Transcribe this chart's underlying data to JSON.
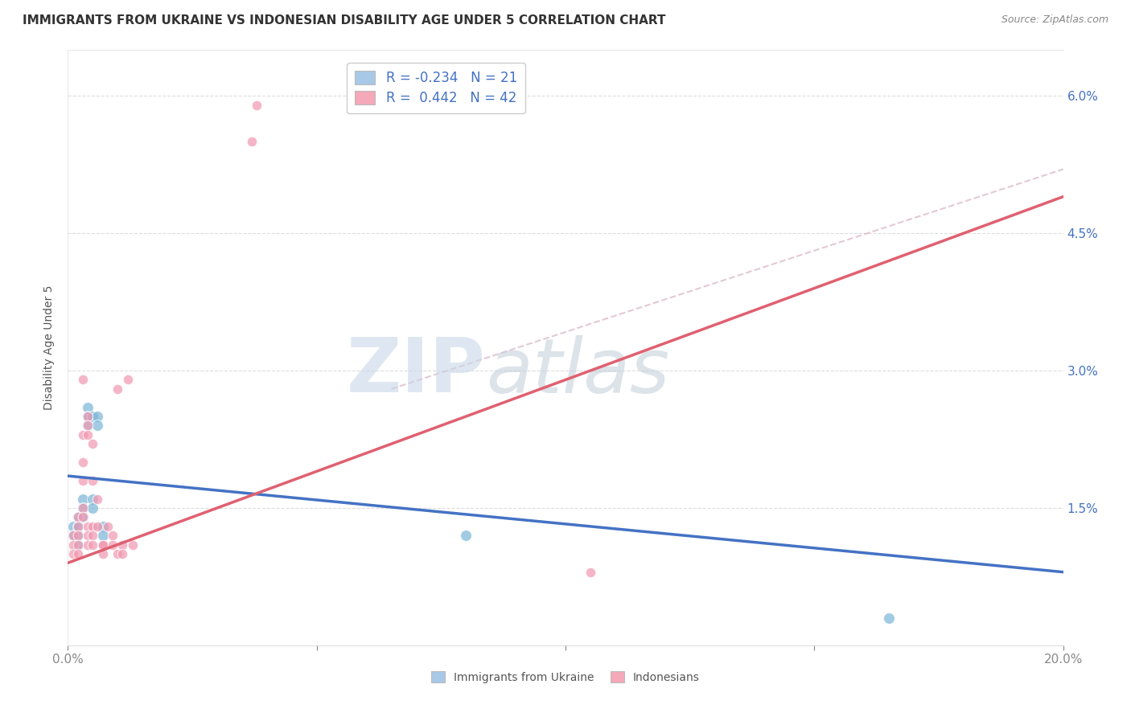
{
  "title": "IMMIGRANTS FROM UKRAINE VS INDONESIAN DISABILITY AGE UNDER 5 CORRELATION CHART",
  "source": "Source: ZipAtlas.com",
  "ylabel": "Disability Age Under 5",
  "xlim": [
    0.0,
    0.2
  ],
  "ylim": [
    0.0,
    0.065
  ],
  "xticks": [
    0.0,
    0.05,
    0.1,
    0.15,
    0.2
  ],
  "xticklabels_bottom": [
    "0.0%",
    "",
    "",
    "",
    "20.0%"
  ],
  "yticks": [
    0.0,
    0.015,
    0.03,
    0.045,
    0.06
  ],
  "yticklabels_right": [
    "",
    "1.5%",
    "3.0%",
    "4.5%",
    "6.0%"
  ],
  "legend_ukraine": {
    "R": "-0.234",
    "N": "21",
    "color": "#a8c8e8"
  },
  "legend_indonesians": {
    "R": "0.442",
    "N": "42",
    "color": "#f4a8b8"
  },
  "ukraine_scatter": [
    [
      0.001,
      0.013
    ],
    [
      0.001,
      0.012
    ],
    [
      0.002,
      0.014
    ],
    [
      0.002,
      0.013
    ],
    [
      0.002,
      0.012
    ],
    [
      0.002,
      0.011
    ],
    [
      0.003,
      0.016
    ],
    [
      0.003,
      0.015
    ],
    [
      0.003,
      0.014
    ],
    [
      0.004,
      0.026
    ],
    [
      0.004,
      0.025
    ],
    [
      0.004,
      0.024
    ],
    [
      0.005,
      0.025
    ],
    [
      0.005,
      0.016
    ],
    [
      0.005,
      0.015
    ],
    [
      0.006,
      0.025
    ],
    [
      0.006,
      0.024
    ],
    [
      0.007,
      0.013
    ],
    [
      0.007,
      0.012
    ],
    [
      0.08,
      0.012
    ],
    [
      0.165,
      0.003
    ]
  ],
  "indonesian_scatter": [
    [
      0.001,
      0.012
    ],
    [
      0.001,
      0.011
    ],
    [
      0.001,
      0.01
    ],
    [
      0.002,
      0.014
    ],
    [
      0.002,
      0.013
    ],
    [
      0.002,
      0.012
    ],
    [
      0.002,
      0.011
    ],
    [
      0.002,
      0.01
    ],
    [
      0.003,
      0.029
    ],
    [
      0.003,
      0.023
    ],
    [
      0.003,
      0.02
    ],
    [
      0.003,
      0.018
    ],
    [
      0.003,
      0.015
    ],
    [
      0.003,
      0.014
    ],
    [
      0.004,
      0.025
    ],
    [
      0.004,
      0.024
    ],
    [
      0.004,
      0.023
    ],
    [
      0.004,
      0.013
    ],
    [
      0.004,
      0.012
    ],
    [
      0.004,
      0.011
    ],
    [
      0.005,
      0.022
    ],
    [
      0.005,
      0.018
    ],
    [
      0.005,
      0.013
    ],
    [
      0.005,
      0.012
    ],
    [
      0.005,
      0.011
    ],
    [
      0.006,
      0.016
    ],
    [
      0.006,
      0.013
    ],
    [
      0.007,
      0.011
    ],
    [
      0.007,
      0.011
    ],
    [
      0.007,
      0.01
    ],
    [
      0.008,
      0.013
    ],
    [
      0.009,
      0.012
    ],
    [
      0.009,
      0.011
    ],
    [
      0.01,
      0.028
    ],
    [
      0.01,
      0.01
    ],
    [
      0.011,
      0.011
    ],
    [
      0.011,
      0.01
    ],
    [
      0.012,
      0.029
    ],
    [
      0.013,
      0.011
    ],
    [
      0.037,
      0.055
    ],
    [
      0.038,
      0.059
    ],
    [
      0.105,
      0.008
    ]
  ],
  "ukraine_line": {
    "x0": 0.0,
    "y0": 0.0185,
    "x1": 0.2,
    "y1": 0.008
  },
  "indonesian_line": {
    "x0": 0.0,
    "y0": 0.009,
    "x1": 0.2,
    "y1": 0.049
  },
  "indonesian_dash_line": {
    "x0": 0.065,
    "y0": 0.028,
    "x1": 0.2,
    "y1": 0.052
  },
  "watermark_zip": "ZIP",
  "watermark_atlas": "atlas",
  "bg_color": "#ffffff",
  "grid_color": "#dddddd",
  "scatter_size_ukraine": 100,
  "scatter_size_indonesian": 80,
  "ukraine_dot_color": "#7ab4d8",
  "ukrainian_dot_edge": "#7ab4d8",
  "indonesian_dot_color": "#f098b0",
  "indonesian_dot_edge": "#f098b0",
  "ukraine_line_color": "#4472c4",
  "indonesian_line_color": "#e06070",
  "indonesian_dash_color": "#ddbbcc",
  "title_fontsize": 11,
  "label_fontsize": 10,
  "tick_fontsize": 11,
  "legend_fontsize": 12,
  "right_tick_color": "#4472c4"
}
